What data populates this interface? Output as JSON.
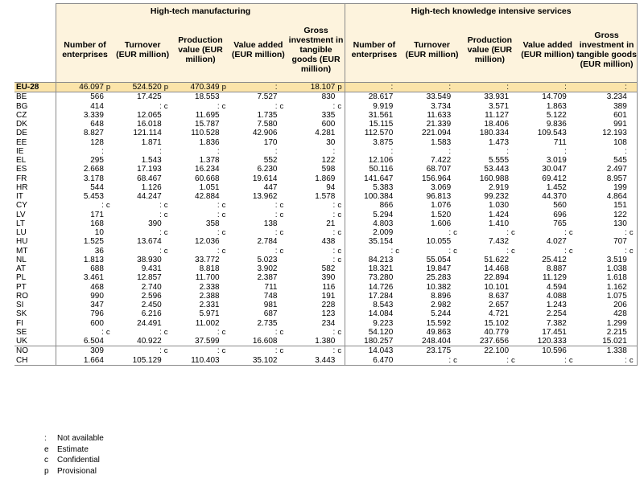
{
  "groups": [
    "High-tech manufacturing",
    "High-tech knowledge intensive services"
  ],
  "columns": [
    "Number of enterprises",
    "Turnover (EUR million)",
    "Production value (EUR million)",
    "Value added (EUR million)",
    "Gross investment in tangible goods (EUR million)",
    "Number of enterprises",
    "Turnover (EUR million)",
    "Production value (EUR million)",
    "Value added (EUR million)",
    "Gross investment in tangible goods (EUR million)"
  ],
  "rows": [
    {
      "label": "EU-28",
      "cells": [
        [
          "46.097",
          "p"
        ],
        [
          "524.520",
          "p"
        ],
        [
          "470.349",
          "p"
        ],
        [
          ":",
          ""
        ],
        [
          "18.107",
          "p"
        ],
        [
          ":",
          ""
        ],
        [
          ":",
          ""
        ],
        [
          ":",
          ""
        ],
        [
          ":",
          ""
        ],
        [
          ":",
          ""
        ]
      ]
    },
    {
      "label": "BE",
      "cells": [
        [
          "566",
          ""
        ],
        [
          "17.425",
          ""
        ],
        [
          "18.553",
          ""
        ],
        [
          "7.527",
          ""
        ],
        [
          "830",
          ""
        ],
        [
          "28.617",
          ""
        ],
        [
          "33.549",
          ""
        ],
        [
          "33.931",
          ""
        ],
        [
          "14.709",
          ""
        ],
        [
          "3.234",
          ""
        ]
      ]
    },
    {
      "label": "BG",
      "cells": [
        [
          "414",
          ""
        ],
        [
          ":",
          "c"
        ],
        [
          ":",
          "c"
        ],
        [
          ":",
          "c"
        ],
        [
          ":",
          "c"
        ],
        [
          "9.919",
          ""
        ],
        [
          "3.734",
          ""
        ],
        [
          "3.571",
          ""
        ],
        [
          "1.863",
          ""
        ],
        [
          "389",
          ""
        ]
      ]
    },
    {
      "label": "CZ",
      "cells": [
        [
          "3.339",
          ""
        ],
        [
          "12.065",
          ""
        ],
        [
          "11.695",
          ""
        ],
        [
          "1.735",
          ""
        ],
        [
          "335",
          ""
        ],
        [
          "31.561",
          ""
        ],
        [
          "11.633",
          ""
        ],
        [
          "11.127",
          ""
        ],
        [
          "5.122",
          ""
        ],
        [
          "601",
          ""
        ]
      ]
    },
    {
      "label": "DK",
      "cells": [
        [
          "648",
          ""
        ],
        [
          "16.018",
          ""
        ],
        [
          "15.787",
          ""
        ],
        [
          "7.580",
          ""
        ],
        [
          "600",
          ""
        ],
        [
          "15.115",
          ""
        ],
        [
          "21.339",
          ""
        ],
        [
          "18.406",
          ""
        ],
        [
          "9.836",
          ""
        ],
        [
          "991",
          ""
        ]
      ]
    },
    {
      "label": "DE",
      "cells": [
        [
          "8.827",
          ""
        ],
        [
          "121.114",
          ""
        ],
        [
          "110.528",
          ""
        ],
        [
          "42.906",
          ""
        ],
        [
          "4.281",
          ""
        ],
        [
          "112.570",
          ""
        ],
        [
          "221.094",
          ""
        ],
        [
          "180.334",
          ""
        ],
        [
          "109.543",
          ""
        ],
        [
          "12.193",
          ""
        ]
      ]
    },
    {
      "label": "EE",
      "cells": [
        [
          "128",
          ""
        ],
        [
          "1.871",
          ""
        ],
        [
          "1.836",
          ""
        ],
        [
          "170",
          ""
        ],
        [
          "30",
          ""
        ],
        [
          "3.875",
          ""
        ],
        [
          "1.583",
          ""
        ],
        [
          "1.473",
          ""
        ],
        [
          "711",
          ""
        ],
        [
          "108",
          ""
        ]
      ]
    },
    {
      "label": "IE",
      "cells": [
        [
          ":",
          ""
        ],
        [
          ":",
          ""
        ],
        [
          ":",
          ""
        ],
        [
          ":",
          ""
        ],
        [
          ":",
          ""
        ],
        [
          ":",
          ""
        ],
        [
          ":",
          ""
        ],
        [
          ":",
          ""
        ],
        [
          ":",
          ""
        ],
        [
          ":",
          ""
        ]
      ]
    },
    {
      "label": "EL",
      "cells": [
        [
          "295",
          ""
        ],
        [
          "1.543",
          ""
        ],
        [
          "1.378",
          ""
        ],
        [
          "552",
          ""
        ],
        [
          "122",
          ""
        ],
        [
          "12.106",
          ""
        ],
        [
          "7.422",
          ""
        ],
        [
          "5.555",
          ""
        ],
        [
          "3.019",
          ""
        ],
        [
          "545",
          ""
        ]
      ]
    },
    {
      "label": "ES",
      "cells": [
        [
          "2.668",
          ""
        ],
        [
          "17.193",
          ""
        ],
        [
          "16.234",
          ""
        ],
        [
          "6.230",
          ""
        ],
        [
          "598",
          ""
        ],
        [
          "50.116",
          ""
        ],
        [
          "68.707",
          ""
        ],
        [
          "53.443",
          ""
        ],
        [
          "30.047",
          ""
        ],
        [
          "2.497",
          ""
        ]
      ]
    },
    {
      "label": "FR",
      "cells": [
        [
          "3.178",
          ""
        ],
        [
          "68.467",
          ""
        ],
        [
          "60.668",
          ""
        ],
        [
          "19.614",
          ""
        ],
        [
          "1.869",
          ""
        ],
        [
          "141.647",
          ""
        ],
        [
          "156.964",
          ""
        ],
        [
          "160.988",
          ""
        ],
        [
          "69.412",
          ""
        ],
        [
          "8.957",
          ""
        ]
      ]
    },
    {
      "label": "HR",
      "cells": [
        [
          "544",
          ""
        ],
        [
          "1.126",
          ""
        ],
        [
          "1.051",
          ""
        ],
        [
          "447",
          ""
        ],
        [
          "94",
          ""
        ],
        [
          "5.383",
          ""
        ],
        [
          "3.069",
          ""
        ],
        [
          "2.919",
          ""
        ],
        [
          "1.452",
          ""
        ],
        [
          "199",
          ""
        ]
      ]
    },
    {
      "label": "IT",
      "cells": [
        [
          "5.453",
          ""
        ],
        [
          "44.247",
          ""
        ],
        [
          "42.884",
          ""
        ],
        [
          "13.962",
          ""
        ],
        [
          "1.578",
          ""
        ],
        [
          "100.384",
          ""
        ],
        [
          "96.813",
          ""
        ],
        [
          "99.232",
          ""
        ],
        [
          "44.370",
          ""
        ],
        [
          "4.864",
          ""
        ]
      ]
    },
    {
      "label": "CY",
      "cells": [
        [
          ":",
          "c"
        ],
        [
          ":",
          "c"
        ],
        [
          ":",
          "c"
        ],
        [
          ":",
          "c"
        ],
        [
          ":",
          "c"
        ],
        [
          "866",
          ""
        ],
        [
          "1.076",
          ""
        ],
        [
          "1.030",
          ""
        ],
        [
          "560",
          ""
        ],
        [
          "151",
          ""
        ]
      ]
    },
    {
      "label": "LV",
      "cells": [
        [
          "171",
          ""
        ],
        [
          ":",
          "c"
        ],
        [
          ":",
          "c"
        ],
        [
          ":",
          "c"
        ],
        [
          ":",
          "c"
        ],
        [
          "5.294",
          ""
        ],
        [
          "1.520",
          ""
        ],
        [
          "1.424",
          ""
        ],
        [
          "696",
          ""
        ],
        [
          "122",
          ""
        ]
      ]
    },
    {
      "label": "LT",
      "cells": [
        [
          "168",
          ""
        ],
        [
          "390",
          ""
        ],
        [
          "358",
          ""
        ],
        [
          "138",
          ""
        ],
        [
          "21",
          ""
        ],
        [
          "4.803",
          ""
        ],
        [
          "1.606",
          ""
        ],
        [
          "1.410",
          ""
        ],
        [
          "765",
          ""
        ],
        [
          "130",
          ""
        ]
      ]
    },
    {
      "label": "LU",
      "cells": [
        [
          "10",
          ""
        ],
        [
          ":",
          "c"
        ],
        [
          ":",
          "c"
        ],
        [
          ":",
          "c"
        ],
        [
          ":",
          "c"
        ],
        [
          "2.009",
          ""
        ],
        [
          ":",
          "c"
        ],
        [
          ":",
          "c"
        ],
        [
          ":",
          "c"
        ],
        [
          ":",
          "c"
        ]
      ]
    },
    {
      "label": "HU",
      "cells": [
        [
          "1.525",
          ""
        ],
        [
          "13.674",
          ""
        ],
        [
          "12.036",
          ""
        ],
        [
          "2.784",
          ""
        ],
        [
          "438",
          ""
        ],
        [
          "35.154",
          ""
        ],
        [
          "10.055",
          ""
        ],
        [
          "7.432",
          ""
        ],
        [
          "4.027",
          ""
        ],
        [
          "707",
          ""
        ]
      ]
    },
    {
      "label": "MT",
      "cells": [
        [
          "36",
          ""
        ],
        [
          ":",
          "c"
        ],
        [
          ":",
          "c"
        ],
        [
          ":",
          "c"
        ],
        [
          ":",
          "c"
        ],
        [
          ":",
          "c"
        ],
        [
          ":",
          "c"
        ],
        [
          ":",
          "c"
        ],
        [
          ":",
          "c"
        ],
        [
          ":",
          "c"
        ]
      ]
    },
    {
      "label": "NL",
      "cells": [
        [
          "1.813",
          ""
        ],
        [
          "38.930",
          ""
        ],
        [
          "33.772",
          ""
        ],
        [
          "5.023",
          ""
        ],
        [
          ":",
          "c"
        ],
        [
          "84.213",
          ""
        ],
        [
          "55.054",
          ""
        ],
        [
          "51.622",
          ""
        ],
        [
          "25.412",
          ""
        ],
        [
          "3.519",
          ""
        ]
      ]
    },
    {
      "label": "AT",
      "cells": [
        [
          "688",
          ""
        ],
        [
          "9.431",
          ""
        ],
        [
          "8.818",
          ""
        ],
        [
          "3.902",
          ""
        ],
        [
          "582",
          ""
        ],
        [
          "18.321",
          ""
        ],
        [
          "19.847",
          ""
        ],
        [
          "14.468",
          ""
        ],
        [
          "8.887",
          ""
        ],
        [
          "1.038",
          ""
        ]
      ]
    },
    {
      "label": "PL",
      "cells": [
        [
          "3.461",
          ""
        ],
        [
          "12.857",
          ""
        ],
        [
          "11.700",
          ""
        ],
        [
          "2.387",
          ""
        ],
        [
          "390",
          ""
        ],
        [
          "73.280",
          ""
        ],
        [
          "25.283",
          ""
        ],
        [
          "22.894",
          ""
        ],
        [
          "11.129",
          ""
        ],
        [
          "1.618",
          ""
        ]
      ]
    },
    {
      "label": "PT",
      "cells": [
        [
          "468",
          ""
        ],
        [
          "2.740",
          ""
        ],
        [
          "2.338",
          ""
        ],
        [
          "711",
          ""
        ],
        [
          "116",
          ""
        ],
        [
          "14.726",
          ""
        ],
        [
          "10.382",
          ""
        ],
        [
          "10.101",
          ""
        ],
        [
          "4.594",
          ""
        ],
        [
          "1.162",
          ""
        ]
      ]
    },
    {
      "label": "RO",
      "cells": [
        [
          "990",
          ""
        ],
        [
          "2.596",
          ""
        ],
        [
          "2.388",
          ""
        ],
        [
          "748",
          ""
        ],
        [
          "191",
          ""
        ],
        [
          "17.284",
          ""
        ],
        [
          "8.896",
          ""
        ],
        [
          "8.637",
          ""
        ],
        [
          "4.088",
          ""
        ],
        [
          "1.075",
          ""
        ]
      ]
    },
    {
      "label": "SI",
      "cells": [
        [
          "347",
          ""
        ],
        [
          "2.450",
          ""
        ],
        [
          "2.331",
          ""
        ],
        [
          "981",
          ""
        ],
        [
          "228",
          ""
        ],
        [
          "8.543",
          ""
        ],
        [
          "2.982",
          ""
        ],
        [
          "2.657",
          ""
        ],
        [
          "1.243",
          ""
        ],
        [
          "206",
          ""
        ]
      ]
    },
    {
      "label": "SK",
      "cells": [
        [
          "796",
          ""
        ],
        [
          "6.216",
          ""
        ],
        [
          "5.971",
          ""
        ],
        [
          "687",
          ""
        ],
        [
          "123",
          ""
        ],
        [
          "14.084",
          ""
        ],
        [
          "5.244",
          ""
        ],
        [
          "4.721",
          ""
        ],
        [
          "2.254",
          ""
        ],
        [
          "428",
          ""
        ]
      ]
    },
    {
      "label": "FI",
      "cells": [
        [
          "600",
          ""
        ],
        [
          "24.491",
          ""
        ],
        [
          "11.002",
          ""
        ],
        [
          "2.735",
          ""
        ],
        [
          "234",
          ""
        ],
        [
          "9.223",
          ""
        ],
        [
          "15.592",
          ""
        ],
        [
          "15.102",
          ""
        ],
        [
          "7.382",
          ""
        ],
        [
          "1.299",
          ""
        ]
      ]
    },
    {
      "label": "SE",
      "cells": [
        [
          ":",
          "c"
        ],
        [
          ":",
          "c"
        ],
        [
          ":",
          "c"
        ],
        [
          ":",
          "c"
        ],
        [
          ":",
          "c"
        ],
        [
          "54.120",
          ""
        ],
        [
          "49.863",
          ""
        ],
        [
          "40.779",
          ""
        ],
        [
          "17.451",
          ""
        ],
        [
          "2.215",
          ""
        ]
      ]
    },
    {
      "label": "UK",
      "cells": [
        [
          "6.504",
          ""
        ],
        [
          "40.922",
          ""
        ],
        [
          "37.599",
          ""
        ],
        [
          "16.608",
          ""
        ],
        [
          "1.380",
          ""
        ],
        [
          "180.257",
          ""
        ],
        [
          "248.404",
          ""
        ],
        [
          "237.656",
          ""
        ],
        [
          "120.333",
          ""
        ],
        [
          "15.021",
          ""
        ]
      ]
    },
    {
      "label": "NO",
      "cells": [
        [
          "309",
          ""
        ],
        [
          ":",
          "c"
        ],
        [
          ":",
          "c"
        ],
        [
          ":",
          "c"
        ],
        [
          ":",
          "c"
        ],
        [
          "14.043",
          ""
        ],
        [
          "23.175",
          ""
        ],
        [
          "22.100",
          ""
        ],
        [
          "10.596",
          ""
        ],
        [
          "1.338",
          ""
        ]
      ]
    },
    {
      "label": "CH",
      "cells": [
        [
          "1.664",
          ""
        ],
        [
          "105.129",
          ""
        ],
        [
          "110.403",
          ""
        ],
        [
          "35.102",
          ""
        ],
        [
          "3.443",
          ""
        ],
        [
          "6.470",
          ""
        ],
        [
          ":",
          "c"
        ],
        [
          ":",
          "c"
        ],
        [
          ":",
          "c"
        ],
        [
          ":",
          "c"
        ]
      ]
    }
  ],
  "legend": [
    {
      "symbol": ":",
      "text": "Not available"
    },
    {
      "symbol": "e",
      "text": "Estimate"
    },
    {
      "symbol": "c",
      "text": "Confidential"
    },
    {
      "symbol": "p",
      "text": "Provisional"
    }
  ]
}
